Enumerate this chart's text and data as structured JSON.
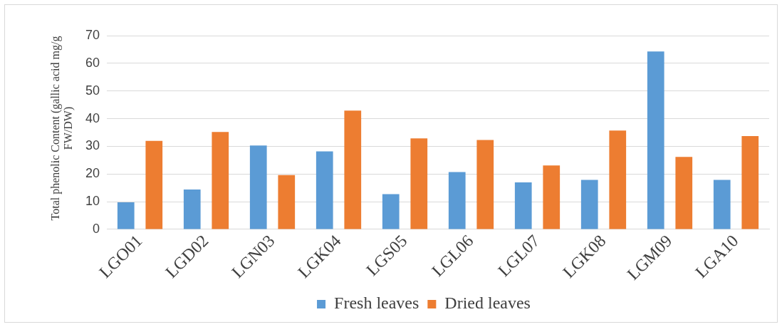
{
  "chart_data": {
    "type": "bar",
    "ylabel": "Total phenolic Content (gallic acid mg/g FW/DW)",
    "categories": [
      "LGO01",
      "LGD02",
      "LGN03",
      "LGK04",
      "LGS05",
      "LGL06",
      "LGL07",
      "LGK08",
      "LGM09",
      "LGA10"
    ],
    "series": [
      {
        "name": "Fresh leaves",
        "color": "#5b9bd5",
        "values": [
          9.8,
          14.4,
          30.3,
          28.2,
          12.7,
          20.7,
          17.0,
          17.9,
          64.3,
          17.9
        ]
      },
      {
        "name": "Dried leaves",
        "color": "#ed7d31",
        "values": [
          32.0,
          35.2,
          19.6,
          42.9,
          32.9,
          32.3,
          23.1,
          35.7,
          26.2,
          33.7
        ]
      }
    ],
    "ylim": [
      0,
      70
    ],
    "yticks": [
      0,
      10,
      20,
      30,
      40,
      50,
      60,
      70
    ],
    "grid": "y",
    "legend": "bottom"
  }
}
